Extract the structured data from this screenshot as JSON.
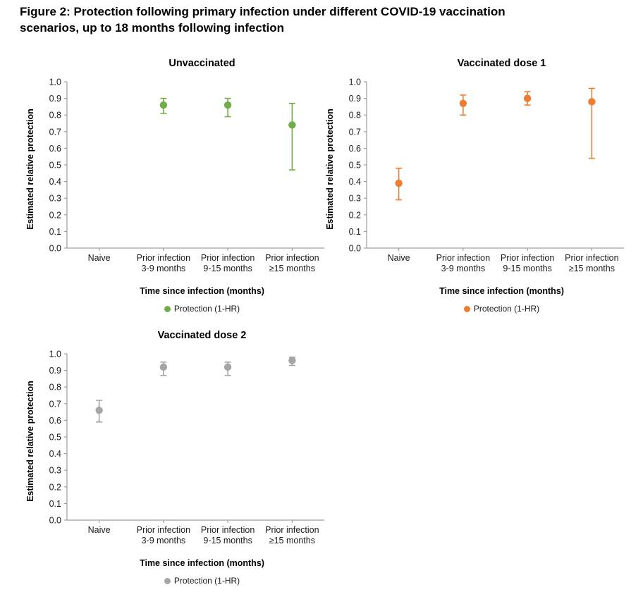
{
  "figure": {
    "title": "Figure 2: Protection following primary infection under different COVID-19 vaccination\nscenarios, up to 18 months following infection"
  },
  "chart_data": [
    {
      "type": "scatter",
      "title": "Unvaccinated",
      "legend_label": "Protection (1-HR)",
      "color": "#70AD47",
      "xlabel": "Time since infection (months)",
      "ylabel": "Estimated relative protection",
      "ylim": [
        0.0,
        1.0
      ],
      "ytick_step": 0.1,
      "grid": false,
      "legend_position": "bottom",
      "categories": [
        "Naive",
        "Prior infection\n3-9 months",
        "Prior infection\n9-15 months",
        "Prior infection\n≥15 months"
      ],
      "values": [
        null,
        0.86,
        0.86,
        0.74
      ],
      "ci_low": [
        null,
        0.81,
        0.79,
        0.47
      ],
      "ci_high": [
        null,
        0.9,
        0.9,
        0.87
      ]
    },
    {
      "type": "scatter",
      "title": "Vaccinated dose 1",
      "legend_label": "Protection (1-HR)",
      "color": "#ED7D31",
      "xlabel": "Time since infection (months)",
      "ylabel": "Estimated relative protection",
      "ylim": [
        0.0,
        1.0
      ],
      "ytick_step": 0.1,
      "grid": false,
      "legend_position": "bottom",
      "categories": [
        "Naive",
        "Prior infection\n3-9 months",
        "Prior infection\n9-15 months",
        "Prior infection\n≥15 months"
      ],
      "values": [
        0.39,
        0.87,
        0.9,
        0.88
      ],
      "ci_low": [
        0.29,
        0.8,
        0.86,
        0.54
      ],
      "ci_high": [
        0.48,
        0.92,
        0.94,
        0.96
      ]
    },
    {
      "type": "scatter",
      "title": "Vaccinated dose 2",
      "legend_label": "Protection (1-HR)",
      "color": "#A5A5A5",
      "xlabel": "Time since infection (months)",
      "ylabel": "Estimated relative protection",
      "ylim": [
        0.0,
        1.0
      ],
      "ytick_step": 0.1,
      "grid": false,
      "legend_position": "bottom",
      "categories": [
        "Naive",
        "Prior infection\n3-9 months",
        "Prior infection\n9-15 months",
        "Prior infection\n≥15 months"
      ],
      "values": [
        0.66,
        0.92,
        0.92,
        0.96
      ],
      "ci_low": [
        0.59,
        0.87,
        0.87,
        0.93
      ],
      "ci_high": [
        0.72,
        0.95,
        0.95,
        0.98
      ]
    }
  ]
}
